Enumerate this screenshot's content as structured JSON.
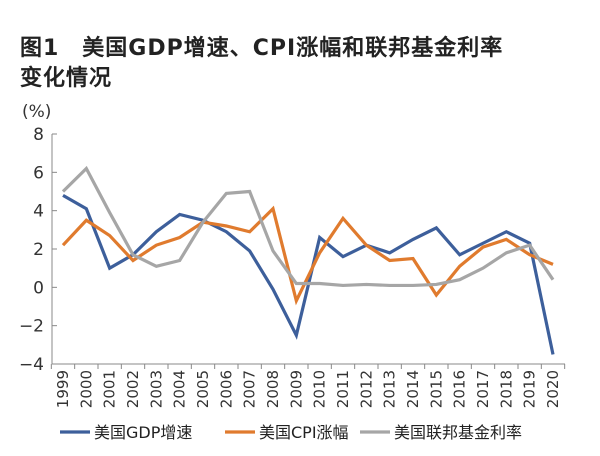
{
  "chart_data": {
    "type": "line",
    "title_line1": "图1　美国GDP增速、CPI涨幅和联邦基金利率",
    "title_line2": "变化情况",
    "ylabel": "(%)",
    "ylim": [
      -4,
      8
    ],
    "yticks": [
      "8",
      "6",
      "4",
      "2",
      "0",
      "−2",
      "−4"
    ],
    "ytick_values": [
      8,
      6,
      4,
      2,
      0,
      -2,
      -4
    ],
    "categories": [
      "1999",
      "2000",
      "2001",
      "2002",
      "2003",
      "2004",
      "2005",
      "2006",
      "2007",
      "2008",
      "2009",
      "2010",
      "2011",
      "2012",
      "2013",
      "2014",
      "2015",
      "2016",
      "2017",
      "2018",
      "2019",
      "2020"
    ],
    "legend_position": "bottom",
    "grid": false,
    "series": [
      {
        "name": "美国GDP增速",
        "color": "#3d5f9b",
        "values": [
          4.8,
          4.1,
          1.0,
          1.7,
          2.9,
          3.8,
          3.5,
          2.9,
          1.9,
          -0.1,
          -2.5,
          2.6,
          1.6,
          2.2,
          1.8,
          2.5,
          3.1,
          1.7,
          2.3,
          2.9,
          2.3,
          -3.5
        ]
      },
      {
        "name": "美国CPI涨幅",
        "color": "#e07b2e",
        "values": [
          2.2,
          3.5,
          2.7,
          1.4,
          2.2,
          2.6,
          3.4,
          3.2,
          2.9,
          4.1,
          -0.7,
          1.8,
          3.6,
          2.2,
          1.4,
          1.5,
          -0.4,
          1.1,
          2.1,
          2.5,
          1.7,
          1.2
        ]
      },
      {
        "name": "美国联邦基金利率",
        "color": "#a6a6a6",
        "values": [
          5.0,
          6.2,
          3.9,
          1.7,
          1.1,
          1.4,
          3.4,
          4.9,
          5.0,
          1.9,
          0.2,
          0.2,
          0.1,
          0.15,
          0.1,
          0.1,
          0.15,
          0.4,
          1.0,
          1.8,
          2.2,
          0.4
        ]
      }
    ]
  }
}
